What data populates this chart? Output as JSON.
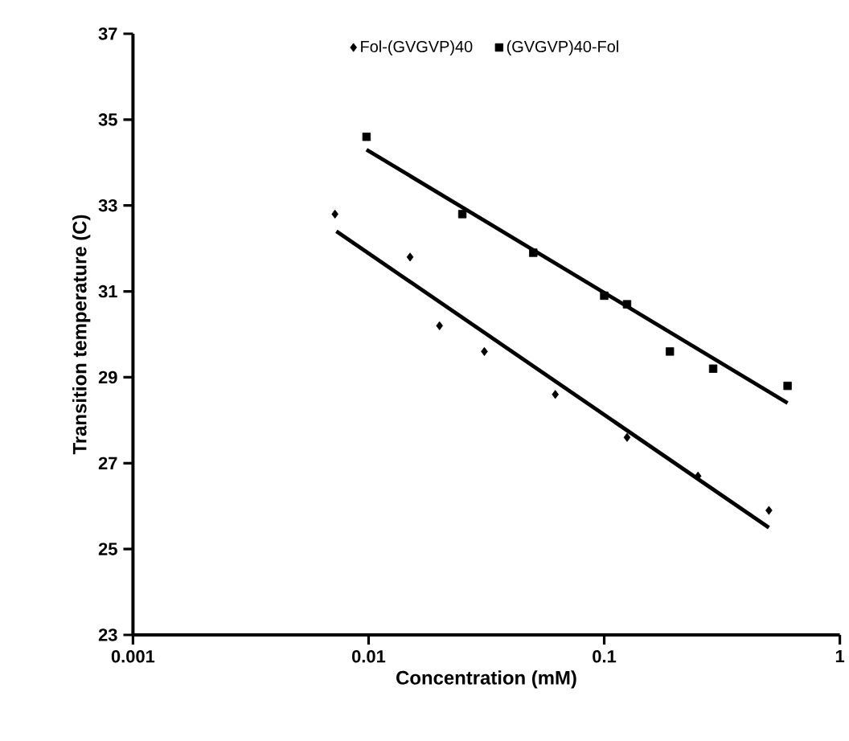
{
  "chart_data": {
    "type": "scatter",
    "xlabel": "Concentration (mM)",
    "ylabel": "Transition temperature (C)",
    "log": "x",
    "xlim": [
      0.001,
      1
    ],
    "xticks": [
      0.001,
      0.01,
      0.1,
      1
    ],
    "ylim": [
      23,
      37
    ],
    "yticks": [
      23,
      25,
      27,
      29,
      31,
      33,
      35,
      37
    ],
    "grid": false,
    "legend": "top",
    "series": [
      {
        "name": "Fol-(GVGVP)40",
        "color": "#000000",
        "marker": "diamond",
        "x": [
          0.0072,
          0.015,
          0.02,
          0.031,
          0.062,
          0.125,
          0.25,
          0.5
        ],
        "values": [
          32.8,
          31.8,
          30.2,
          29.6,
          28.6,
          27.6,
          26.7,
          25.9
        ]
      },
      {
        "name": "(GVGVP)40-Fol",
        "color": "#000000",
        "marker": "square",
        "x": [
          0.0098,
          0.025,
          0.05,
          0.1,
          0.125,
          0.19,
          0.29,
          0.6
        ],
        "values": [
          34.6,
          32.8,
          31.9,
          30.9,
          30.7,
          29.6,
          29.2,
          28.8
        ]
      },
      {
        "type": "line",
        "color": "#000000",
        "marker": "none",
        "line_style": "solid",
        "x": [
          0.0098,
          0.6
        ],
        "values": [
          34.3,
          28.4
        ]
      },
      {
        "type": "line",
        "color": "#000000",
        "marker": "none",
        "line_style": "solid",
        "x": [
          0.0073,
          0.5
        ],
        "values": [
          32.4,
          25.5
        ]
      }
    ]
  }
}
